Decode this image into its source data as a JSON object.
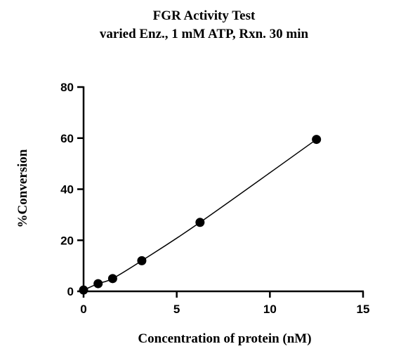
{
  "chart_data": {
    "type": "scatter",
    "title": "FGR Activity Test",
    "subtitle": "varied Enz., 1 mM ATP, Rxn. 30 min",
    "xlabel": "Concentration of protein (nM)",
    "ylabel": "%Conversion",
    "xlim": [
      0,
      15
    ],
    "ylim": [
      0,
      80
    ],
    "xticks": [
      0,
      5,
      10,
      15
    ],
    "yticks": [
      0,
      20,
      40,
      60,
      80
    ],
    "grid": false,
    "series": [
      {
        "x": [
          0,
          0.78,
          1.56,
          3.125,
          6.25,
          12.5
        ],
        "y": [
          0.5,
          3,
          5,
          12,
          27,
          59.5
        ],
        "markers": true,
        "line": "fitted curve",
        "color": "#000000"
      }
    ]
  }
}
